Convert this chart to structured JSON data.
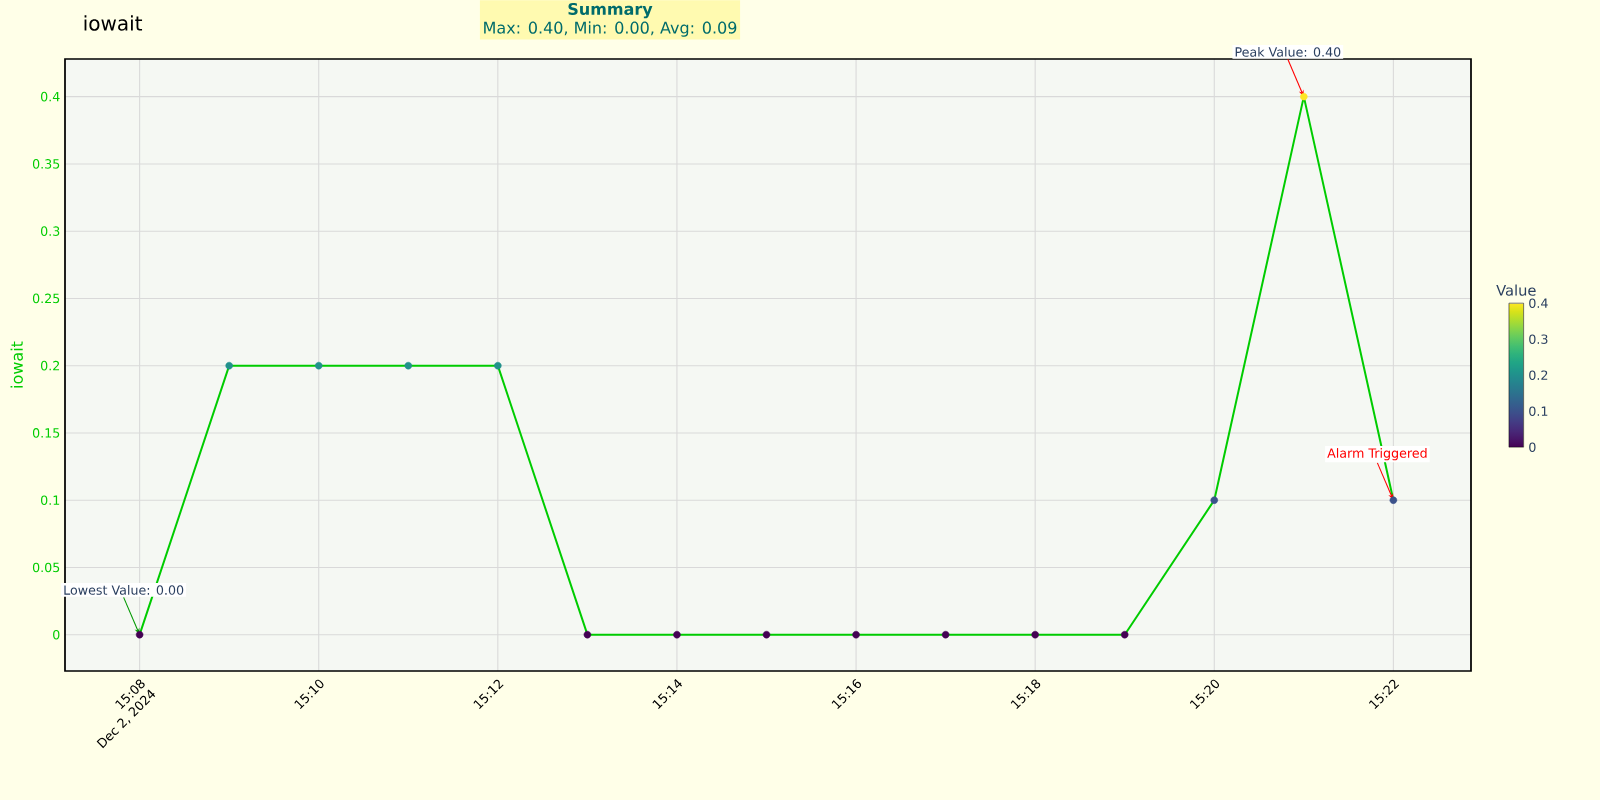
{
  "chart_data": {
    "type": "line",
    "title": "iowait",
    "ylabel": "iowait",
    "annotations": [
      "Summary",
      "Max: 0.40, Min: 0.00, Avg: 0.09",
      {
        "text": "Lowest Value: 0.00",
        "x": "2024-12-02T15:08",
        "y": 0
      },
      {
        "text": "Peak Value: 0.40",
        "x": "2024-12-02T15:21",
        "y": 0.4
      },
      {
        "text": "Alarm Triggered",
        "x": "2024-12-02T15:22",
        "y": 0.1
      }
    ],
    "x": [
      "2024-12-02T15:08",
      "2024-12-02T15:09",
      "2024-12-02T15:10",
      "2024-12-02T15:11",
      "2024-12-02T15:12",
      "2024-12-02T15:13",
      "2024-12-02T15:14",
      "2024-12-02T15:15",
      "2024-12-02T15:16",
      "2024-12-02T15:17",
      "2024-12-02T15:18",
      "2024-12-02T15:19",
      "2024-12-02T15:20",
      "2024-12-02T15:21",
      "2024-12-02T15:22"
    ],
    "series": [
      {
        "color": "#00cc00",
        "marker": "none",
        "values": [
          0,
          0.2,
          0.2,
          0.2,
          0.2,
          0,
          0,
          0,
          0,
          0,
          0,
          0,
          0.1,
          0.4,
          0.1
        ]
      },
      {
        "type": "scatter",
        "marker": "circle",
        "values": [
          0,
          0.2,
          0.2,
          0.2,
          0.2,
          0,
          0,
          0,
          0,
          0,
          0,
          0,
          0.1,
          0.4,
          0.1
        ],
        "colors": [
          "#440154",
          "#21918c",
          "#21918c",
          "#21918c",
          "#21918c",
          "#440154",
          "#440154",
          "#440154",
          "#440154",
          "#440154",
          "#440154",
          "#440154",
          "#3b528b",
          "#fde725",
          "#3b528b"
        ]
      }
    ],
    "clabel": "Value",
    "clim": [
      0,
      0.4
    ],
    "cticks": [
      0,
      0.1,
      0.2,
      0.3,
      0.4
    ],
    "xlim": [
      "2024-12-02T15:07:10",
      "2024-12-02T15:22:52"
    ],
    "xticks": [
      {
        "value": "2024-12-02T15:08",
        "label": "15:08\nDec 2, 2024"
      },
      {
        "value": "2024-12-02T15:10",
        "label": "15:10"
      },
      {
        "value": "2024-12-02T15:12",
        "label": "15:12"
      },
      {
        "value": "2024-12-02T15:14",
        "label": "15:14"
      },
      {
        "value": "2024-12-02T15:16",
        "label": "15:16"
      },
      {
        "value": "2024-12-02T15:18",
        "label": "15:18"
      },
      {
        "value": "2024-12-02T15:20",
        "label": "15:20"
      },
      {
        "value": "2024-12-02T15:22",
        "label": "15:22"
      }
    ],
    "ylim": [
      -0.027,
      0.428
    ],
    "yticks": [
      0,
      0.05,
      0.1,
      0.15,
      0.2,
      0.25,
      0.3,
      0.35,
      0.4
    ],
    "grid": true
  }
}
